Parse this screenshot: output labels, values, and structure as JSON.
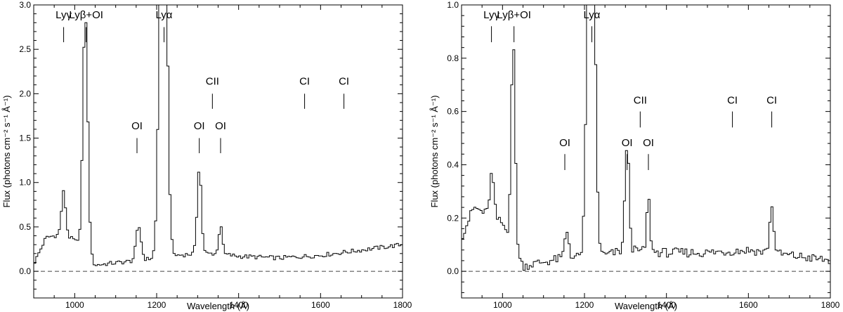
{
  "chart_data": [
    {
      "type": "line",
      "style": "step",
      "xlabel": "Wavelength (Å)",
      "ylabel": "Flux (photons cm⁻² s⁻¹ Å⁻¹)",
      "xlim": [
        900,
        1800
      ],
      "ylim": [
        -0.3,
        3.0
      ],
      "xticks": [
        1000,
        1200,
        1400,
        1600,
        1800
      ],
      "yticks": [
        0.0,
        0.5,
        1.0,
        1.5,
        2.0,
        2.5,
        3.0
      ],
      "ytick_labels": [
        "0.0",
        "0.5",
        "1.0",
        "1.5",
        "2.0",
        "2.5",
        "3.0"
      ],
      "reference_line": {
        "y": 0.0,
        "style": "dashed"
      },
      "continuum": {
        "x": [
          900,
          930,
          970,
          1000,
          1050,
          1150,
          1250,
          1300,
          1350,
          1400,
          1500,
          1600,
          1700,
          1800
        ],
        "y": [
          0.08,
          0.38,
          0.42,
          0.35,
          0.07,
          0.12,
          0.18,
          0.2,
          0.2,
          0.17,
          0.15,
          0.18,
          0.24,
          0.3
        ]
      },
      "lines": [
        {
          "center": 973,
          "amp": 0.48,
          "width": 5
        },
        {
          "center": 1026,
          "amp": 2.7,
          "width": 6
        },
        {
          "center": 1156,
          "amp": 0.38,
          "width": 6
        },
        {
          "center": 1216,
          "amp": 6.0,
          "width": 8
        },
        {
          "center": 1304,
          "amp": 0.98,
          "width": 5
        },
        {
          "center": 1356,
          "amp": 0.34,
          "width": 4
        }
      ],
      "annotations": [
        {
          "label": "Lyγ",
          "x": 973,
          "label_y": 2.85,
          "tick_top": 2.75,
          "tick_bottom": 2.58
        },
        {
          "label": "Lyβ+OI",
          "x": 1028,
          "label_y": 2.85,
          "tick_top": 2.75,
          "tick_bottom": 2.58
        },
        {
          "label": "Lyα",
          "x": 1218,
          "label_y": 2.85,
          "tick_top": 2.75,
          "tick_bottom": 2.58
        },
        {
          "label": "OI",
          "x": 1152,
          "label_y": 1.6,
          "tick_top": 1.5,
          "tick_bottom": 1.33
        },
        {
          "label": "OI",
          "x": 1304,
          "label_y": 1.6,
          "tick_top": 1.5,
          "tick_bottom": 1.33
        },
        {
          "label": "OI",
          "x": 1356,
          "label_y": 1.6,
          "tick_top": 1.5,
          "tick_bottom": 1.33
        },
        {
          "label": "CII",
          "x": 1336,
          "label_y": 2.1,
          "tick_top": 2.0,
          "tick_bottom": 1.83
        },
        {
          "label": "CI",
          "x": 1561,
          "label_y": 2.1,
          "tick_top": 2.0,
          "tick_bottom": 1.83
        },
        {
          "label": "CI",
          "x": 1657,
          "label_y": 2.1,
          "tick_top": 2.0,
          "tick_bottom": 1.83
        }
      ]
    },
    {
      "type": "line",
      "style": "step",
      "xlabel": "Wavelength (Å)",
      "ylabel": "Flux (photons cm⁻² s⁻¹ Å⁻¹)",
      "xlim": [
        900,
        1800
      ],
      "ylim": [
        -0.1,
        1.0
      ],
      "xticks": [
        1000,
        1200,
        1400,
        1600,
        1800
      ],
      "yticks": [
        0.0,
        0.2,
        0.4,
        0.6,
        0.8,
        1.0
      ],
      "ytick_labels": [
        "0.0",
        "0.2",
        "0.4",
        "0.6",
        "0.8",
        "1.0"
      ],
      "reference_line": {
        "y": 0.0,
        "style": "dashed"
      },
      "continuum": {
        "x": [
          900,
          930,
          980,
          1000,
          1050,
          1150,
          1250,
          1300,
          1400,
          1500,
          1600,
          1700,
          1800
        ],
        "y": [
          0.13,
          0.24,
          0.2,
          0.18,
          0.02,
          0.05,
          0.06,
          0.08,
          0.07,
          0.07,
          0.08,
          0.06,
          0.04
        ]
      },
      "lines": [
        {
          "center": 974,
          "amp": 0.16,
          "width": 5
        },
        {
          "center": 1026,
          "amp": 0.76,
          "width": 5
        },
        {
          "center": 1157,
          "amp": 0.1,
          "width": 5
        },
        {
          "center": 1216,
          "amp": 2.0,
          "width": 8
        },
        {
          "center": 1304,
          "amp": 0.4,
          "width": 5
        },
        {
          "center": 1356,
          "amp": 0.2,
          "width": 4
        },
        {
          "center": 1657,
          "amp": 0.17,
          "width": 5
        }
      ],
      "annotations": [
        {
          "label": "Lyγ",
          "x": 973,
          "label_y": 0.95,
          "tick_top": 0.92,
          "tick_bottom": 0.86
        },
        {
          "label": "Lyβ+OI",
          "x": 1028,
          "label_y": 0.95,
          "tick_top": 0.92,
          "tick_bottom": 0.86
        },
        {
          "label": "Lyα",
          "x": 1218,
          "label_y": 0.95,
          "tick_top": 0.92,
          "tick_bottom": 0.86
        },
        {
          "label": "OI",
          "x": 1152,
          "label_y": 0.47,
          "tick_top": 0.44,
          "tick_bottom": 0.38
        },
        {
          "label": "OI",
          "x": 1304,
          "label_y": 0.47,
          "tick_top": 0.44,
          "tick_bottom": 0.38
        },
        {
          "label": "OI",
          "x": 1356,
          "label_y": 0.47,
          "tick_top": 0.44,
          "tick_bottom": 0.38
        },
        {
          "label": "CII",
          "x": 1336,
          "label_y": 0.63,
          "tick_top": 0.6,
          "tick_bottom": 0.54
        },
        {
          "label": "CI",
          "x": 1561,
          "label_y": 0.63,
          "tick_top": 0.6,
          "tick_bottom": 0.54
        },
        {
          "label": "CI",
          "x": 1657,
          "label_y": 0.63,
          "tick_top": 0.6,
          "tick_bottom": 0.54
        }
      ]
    }
  ]
}
